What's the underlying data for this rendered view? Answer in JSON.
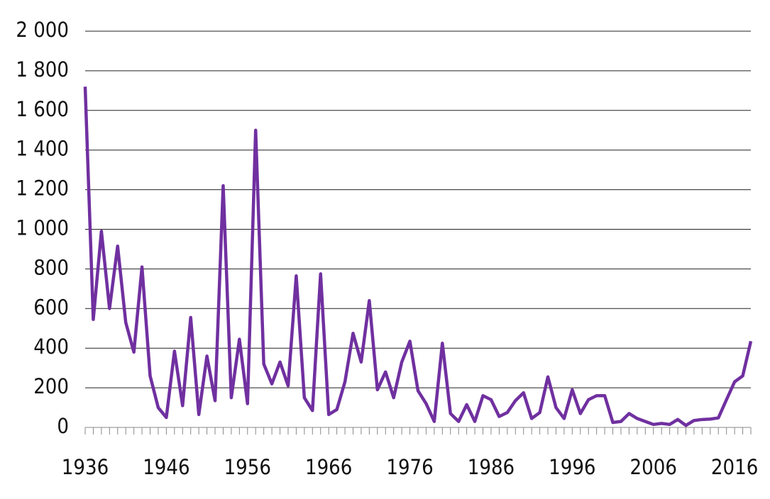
{
  "chart_data": {
    "type": "line",
    "color": "#7030a0",
    "grid": true,
    "x": [
      1936,
      1937,
      1938,
      1939,
      1940,
      1941,
      1942,
      1943,
      1944,
      1945,
      1946,
      1947,
      1948,
      1949,
      1950,
      1951,
      1952,
      1953,
      1954,
      1955,
      1956,
      1957,
      1958,
      1959,
      1960,
      1961,
      1962,
      1963,
      1964,
      1965,
      1966,
      1967,
      1968,
      1969,
      1970,
      1971,
      1972,
      1973,
      1974,
      1975,
      1976,
      1977,
      1978,
      1979,
      1980,
      1981,
      1982,
      1983,
      1984,
      1985,
      1986,
      1987,
      1988,
      1989,
      1990,
      1991,
      1992,
      1993,
      1994,
      1995,
      1996,
      1997,
      1998,
      1999,
      2000,
      2001,
      2002,
      2003,
      2004,
      2005,
      2006,
      2007,
      2008,
      2009,
      2010,
      2011,
      2012,
      2013,
      2014,
      2015,
      2016,
      2017,
      2018
    ],
    "values": [
      1720,
      545,
      990,
      600,
      915,
      530,
      380,
      810,
      260,
      100,
      50,
      385,
      110,
      555,
      65,
      360,
      135,
      1220,
      150,
      445,
      120,
      1500,
      320,
      220,
      330,
      210,
      765,
      150,
      85,
      775,
      65,
      90,
      230,
      475,
      330,
      640,
      190,
      280,
      150,
      330,
      435,
      185,
      120,
      30,
      425,
      70,
      30,
      115,
      30,
      160,
      140,
      55,
      75,
      135,
      175,
      45,
      75,
      255,
      100,
      45,
      190,
      70,
      140,
      160,
      160,
      25,
      30,
      70,
      45,
      30,
      15,
      20,
      15,
      40,
      10,
      35,
      40,
      42,
      48,
      140,
      230,
      260,
      435
    ],
    "xlim": [
      1936,
      2018
    ],
    "xticks": [
      1936,
      1946,
      1956,
      1966,
      1976,
      1986,
      1996,
      2006,
      2016
    ],
    "ylim": [
      0,
      2000
    ],
    "yticks": [
      0,
      200,
      400,
      600,
      800,
      {
        "value": 1000,
        "label": "1 000"
      },
      {
        "value": 1200,
        "label": "1 200"
      },
      {
        "value": 1400,
        "label": "1 400"
      },
      {
        "value": 1600,
        "label": "1 600"
      },
      {
        "value": 1800,
        "label": "1 800"
      },
      {
        "value": 2000,
        "label": "2 000"
      }
    ]
  }
}
